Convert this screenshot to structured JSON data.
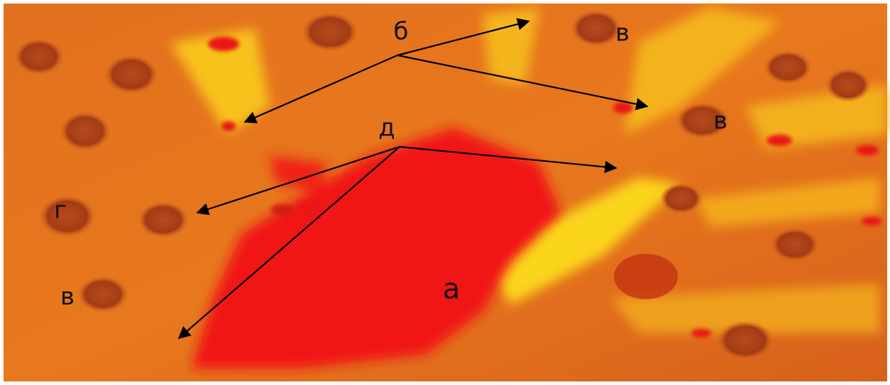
{
  "labels": {
    "a": "а",
    "b": "б",
    "v1": "в",
    "v2": "в",
    "v3": "в",
    "g": "г",
    "d": "д"
  }
}
